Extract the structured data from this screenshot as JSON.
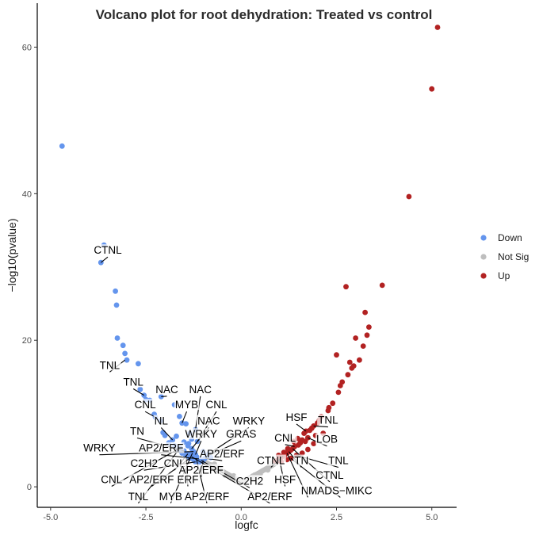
{
  "chart_data": {
    "type": "scatter",
    "title": "Volcano plot for root dehydration: Treated vs control",
    "xlabel": "logfc",
    "ylabel": "−log10(pvalue)",
    "xlim": [
      -5.35,
      5.65
    ],
    "ylim": [
      -2.8,
      66
    ],
    "x_ticks": [
      -5.0,
      -2.5,
      0.0,
      2.5,
      5.0
    ],
    "x_tick_labels": [
      "-5.0",
      "-2.5",
      "0.0",
      "2.5",
      "5.0"
    ],
    "y_ticks": [
      0,
      20,
      40,
      60
    ],
    "y_tick_labels": [
      "0",
      "20",
      "40",
      "60"
    ],
    "grid": false,
    "legend": {
      "position": "right",
      "entries": [
        {
          "name": "Down",
          "color": "#6495ED"
        },
        {
          "name": "Not Sig",
          "color": "#BEBEBE"
        },
        {
          "name": "Up",
          "color": "#B22222"
        }
      ]
    },
    "series": [
      {
        "name": "Down",
        "color": "#6495ED",
        "points": [
          [
            -4.7,
            46.5
          ],
          [
            -3.6,
            33.0
          ],
          [
            -3.68,
            30.6
          ],
          [
            -3.3,
            26.7
          ],
          [
            -3.27,
            24.8
          ],
          [
            -3.25,
            20.3
          ],
          [
            -3.1,
            19.3
          ],
          [
            -3.05,
            18.2
          ],
          [
            -3.0,
            17.3
          ],
          [
            -2.7,
            16.8
          ],
          [
            -2.65,
            13.3
          ],
          [
            -2.55,
            12.5
          ],
          [
            -2.5,
            11.9
          ],
          [
            -2.4,
            11.8
          ],
          [
            -2.28,
            9.9
          ],
          [
            -2.25,
            9.5
          ],
          [
            -2.12,
            9.0
          ],
          [
            -2.1,
            12.3
          ],
          [
            -1.75,
            11.2
          ],
          [
            -1.62,
            9.6
          ],
          [
            -1.55,
            8.7
          ],
          [
            -1.45,
            8.6
          ],
          [
            -1.35,
            7.3
          ],
          [
            -1.2,
            7.8
          ],
          [
            -1.15,
            6.2
          ],
          [
            -1.8,
            6.4
          ],
          [
            -1.7,
            6.9
          ],
          [
            -1.5,
            6.1
          ],
          [
            -1.4,
            5.6
          ],
          [
            -1.3,
            5.2
          ],
          [
            -1.25,
            4.8
          ],
          [
            -1.2,
            4.4
          ],
          [
            -1.15,
            4.0
          ],
          [
            -1.1,
            3.8
          ],
          [
            -1.05,
            3.6
          ],
          [
            -1.3,
            4.1
          ],
          [
            -1.4,
            4.5
          ],
          [
            -1.5,
            4.9
          ],
          [
            -1.6,
            5.3
          ],
          [
            -1.35,
            3.9
          ],
          [
            -1.45,
            4.2
          ],
          [
            -1.25,
            3.7
          ],
          [
            -1.0,
            3.6
          ],
          [
            -0.95,
            3.9
          ],
          [
            -0.9,
            4.2
          ],
          [
            -0.85,
            4.5
          ],
          [
            -1.2,
            3.4
          ],
          [
            -1.1,
            3.3
          ],
          [
            -1.55,
            4.6
          ],
          [
            -1.65,
            5.0
          ],
          [
            -1.75,
            5.6
          ],
          [
            -1.9,
            6.0
          ],
          [
            -2.0,
            7.0
          ],
          [
            -2.05,
            7.4
          ],
          [
            -1.3,
            6.5
          ],
          [
            -1.0,
            4.8
          ],
          [
            -0.8,
            4.0
          ],
          [
            -1.38,
            5.9
          ],
          [
            -1.28,
            4.6
          ],
          [
            -1.18,
            3.9
          ]
        ]
      },
      {
        "name": "Not Sig",
        "color": "#BEBEBE",
        "points": [
          [
            -0.95,
            3.4
          ],
          [
            -0.9,
            3.25
          ],
          [
            -0.85,
            3.1
          ],
          [
            -0.8,
            3.0
          ],
          [
            -0.75,
            2.85
          ],
          [
            -0.7,
            2.75
          ],
          [
            -0.65,
            2.6
          ],
          [
            -0.6,
            2.45
          ],
          [
            -0.55,
            2.3
          ],
          [
            -0.5,
            2.15
          ],
          [
            -0.45,
            2.0
          ],
          [
            -0.4,
            1.85
          ],
          [
            -0.35,
            1.7
          ],
          [
            -0.3,
            1.55
          ],
          [
            -0.25,
            1.4
          ],
          [
            -0.2,
            1.25
          ],
          [
            -0.15,
            1.1
          ],
          [
            -0.1,
            0.95
          ],
          [
            -0.05,
            0.85
          ],
          [
            0.0,
            0.8
          ],
          [
            0.05,
            0.85
          ],
          [
            0.1,
            0.95
          ],
          [
            0.15,
            1.05
          ],
          [
            0.2,
            1.2
          ],
          [
            0.25,
            1.3
          ],
          [
            0.3,
            1.45
          ],
          [
            0.35,
            1.6
          ],
          [
            0.4,
            1.7
          ],
          [
            0.45,
            1.85
          ],
          [
            0.5,
            2.0
          ],
          [
            0.55,
            2.15
          ],
          [
            0.6,
            2.3
          ],
          [
            0.65,
            2.45
          ],
          [
            0.7,
            2.6
          ],
          [
            0.75,
            2.75
          ],
          [
            0.8,
            2.9
          ],
          [
            0.85,
            3.05
          ],
          [
            0.9,
            3.2
          ],
          [
            -0.78,
            2.6
          ],
          [
            -0.6,
            2.7
          ],
          [
            -0.42,
            1.6
          ],
          [
            -0.2,
            1.5
          ],
          [
            0.1,
            0.7
          ],
          [
            0.3,
            1.2
          ],
          [
            0.5,
            1.7
          ],
          [
            0.7,
            2.3
          ],
          [
            0.82,
            3.3
          ],
          [
            -0.7,
            3.1
          ]
        ]
      },
      {
        "name": "Up",
        "color": "#B22222",
        "points": [
          [
            5.15,
            62.7
          ],
          [
            5.0,
            54.3
          ],
          [
            4.4,
            39.6
          ],
          [
            3.7,
            27.5
          ],
          [
            2.75,
            27.3
          ],
          [
            3.25,
            23.8
          ],
          [
            3.35,
            21.8
          ],
          [
            3.3,
            20.7
          ],
          [
            3.0,
            20.3
          ],
          [
            3.2,
            19.2
          ],
          [
            3.1,
            17.3
          ],
          [
            2.5,
            18.0
          ],
          [
            2.85,
            17.0
          ],
          [
            2.95,
            16.5
          ],
          [
            2.9,
            16.2
          ],
          [
            2.8,
            15.3
          ],
          [
            2.65,
            14.3
          ],
          [
            2.6,
            13.8
          ],
          [
            2.55,
            12.9
          ],
          [
            2.4,
            11.4
          ],
          [
            2.3,
            10.8
          ],
          [
            2.28,
            10.4
          ],
          [
            2.1,
            9.6
          ],
          [
            2.05,
            9.1
          ],
          [
            2.0,
            8.7
          ],
          [
            1.9,
            8.3
          ],
          [
            1.85,
            8.0
          ],
          [
            1.8,
            7.7
          ],
          [
            1.7,
            7.6
          ],
          [
            1.65,
            7.3
          ],
          [
            1.95,
            7.0
          ],
          [
            1.75,
            6.7
          ],
          [
            1.6,
            6.4
          ],
          [
            1.55,
            6.0
          ],
          [
            1.5,
            5.7
          ],
          [
            1.4,
            5.5
          ],
          [
            1.35,
            5.2
          ],
          [
            1.3,
            5.0
          ],
          [
            1.25,
            4.8
          ],
          [
            1.2,
            4.6
          ],
          [
            1.15,
            4.4
          ],
          [
            1.1,
            4.2
          ],
          [
            1.05,
            4.0
          ],
          [
            1.0,
            3.8
          ],
          [
            0.95,
            3.6
          ],
          [
            1.45,
            4.3
          ],
          [
            1.6,
            4.6
          ],
          [
            1.75,
            5.1
          ],
          [
            1.9,
            5.9
          ],
          [
            1.3,
            3.9
          ],
          [
            1.2,
            3.7
          ],
          [
            1.05,
            3.4
          ],
          [
            0.9,
            3.5
          ],
          [
            0.98,
            4.3
          ],
          [
            1.12,
            4.7
          ],
          [
            1.22,
            5.2
          ],
          [
            1.38,
            6.2
          ],
          [
            1.48,
            6.6
          ],
          [
            2.15,
            7.3
          ],
          [
            1.68,
            6.2
          ]
        ]
      }
    ],
    "annotations": [
      {
        "text": "CTNL",
        "lx": -3.5,
        "ly": 31.8,
        "px": -3.68,
        "py": 30.6
      },
      {
        "text": "TNL",
        "lx": -3.45,
        "ly": 16.1,
        "px": -3.05,
        "py": 17.3
      },
      {
        "text": "TNL",
        "lx": -2.83,
        "ly": 13.8,
        "px": -2.55,
        "py": 12.5
      },
      {
        "text": "NAC",
        "lx": -1.95,
        "ly": 12.8,
        "px": -2.1,
        "py": 12.3
      },
      {
        "text": "NAC",
        "lx": -1.07,
        "ly": 12.8,
        "px": -1.2,
        "py": 7.8
      },
      {
        "text": "CNL",
        "lx": -2.52,
        "ly": 10.7,
        "px": -2.25,
        "py": 9.5
      },
      {
        "text": "MYB",
        "lx": -1.43,
        "ly": 10.7,
        "px": -1.55,
        "py": 8.7
      },
      {
        "text": "CNL",
        "lx": -0.65,
        "ly": 10.7,
        "px": -1.15,
        "py": 6.2
      },
      {
        "text": "NL",
        "lx": -2.1,
        "ly": 8.5,
        "px": -1.8,
        "py": 6.4
      },
      {
        "text": "NAC",
        "lx": -0.85,
        "ly": 8.5,
        "px": -1.3,
        "py": 5.2
      },
      {
        "text": "WRKY",
        "lx": 0.2,
        "ly": 8.5,
        "px": -0.85,
        "py": 4.5
      },
      {
        "text": "TN",
        "lx": -2.73,
        "ly": 7.1,
        "px": -1.5,
        "py": 4.9
      },
      {
        "text": "WRKY",
        "lx": -1.05,
        "ly": 6.7,
        "px": -1.2,
        "py": 4.4
      },
      {
        "text": "GRAS",
        "lx": 0.0,
        "ly": 6.7,
        "px": -0.9,
        "py": 4.2
      },
      {
        "text": "WRKY",
        "lx": -3.72,
        "ly": 4.8,
        "px": -1.25,
        "py": 4.8
      },
      {
        "text": "AP2/ERF",
        "lx": -2.1,
        "ly": 4.8,
        "px": -1.1,
        "py": 3.8
      },
      {
        "text": "AP2/ERF",
        "lx": -0.5,
        "ly": 4.0,
        "px": -0.95,
        "py": 3.9
      },
      {
        "text": "C2H2",
        "lx": -2.55,
        "ly": 2.7,
        "px": -1.2,
        "py": 3.4
      },
      {
        "text": "CNL",
        "lx": -1.75,
        "ly": 2.7,
        "px": -1.4,
        "py": 4.5
      },
      {
        "text": "AP2/ERF",
        "lx": -1.05,
        "ly": 1.8,
        "px": -1.0,
        "py": 3.6
      },
      {
        "text": "CNL",
        "lx": -3.4,
        "ly": 0.5,
        "px": -1.6,
        "py": 5.3
      },
      {
        "text": "AP2/ERF",
        "lx": -2.35,
        "ly": 0.5,
        "px": -1.35,
        "py": 3.9
      },
      {
        "text": "ERF",
        "lx": -1.4,
        "ly": 0.5,
        "px": -1.45,
        "py": 4.2
      },
      {
        "text": "C2H2",
        "lx": 0.22,
        "ly": 0.3,
        "px": -1.05,
        "py": 3.6
      },
      {
        "text": "TNL",
        "lx": -2.7,
        "ly": -1.8,
        "px": -1.65,
        "py": 5.0
      },
      {
        "text": "MYB",
        "lx": -1.85,
        "ly": -1.8,
        "px": -1.28,
        "py": 4.6
      },
      {
        "text": "AP2/ERF",
        "lx": -0.9,
        "ly": -1.8,
        "px": -1.18,
        "py": 3.9
      },
      {
        "text": "AP2/ERF",
        "lx": 0.75,
        "ly": -1.8,
        "px": -1.3,
        "py": 4.1
      },
      {
        "text": "HSF",
        "lx": 1.45,
        "ly": 9.0,
        "px": 1.7,
        "py": 7.6
      },
      {
        "text": "TNL",
        "lx": 2.28,
        "ly": 8.6,
        "px": 1.9,
        "py": 8.3
      },
      {
        "text": "CNL",
        "lx": 1.15,
        "ly": 6.2,
        "px": 1.4,
        "py": 5.5
      },
      {
        "text": "LOB",
        "lx": 2.25,
        "ly": 6.0,
        "px": 1.75,
        "py": 6.7
      },
      {
        "text": "CTNL",
        "lx": 0.78,
        "ly": 3.1,
        "px": 1.1,
        "py": 4.2
      },
      {
        "text": "TN",
        "lx": 1.58,
        "ly": 3.1,
        "px": 1.25,
        "py": 4.8
      },
      {
        "text": "TNL",
        "lx": 2.55,
        "ly": 3.1,
        "px": 1.45,
        "py": 4.3
      },
      {
        "text": "CTNL",
        "lx": 2.32,
        "ly": 1.1,
        "px": 1.35,
        "py": 5.2
      },
      {
        "text": "HSF",
        "lx": 1.15,
        "ly": 0.5,
        "px": 1.0,
        "py": 3.8
      },
      {
        "text": "NL",
        "lx": 1.75,
        "ly": -1.0,
        "px": 1.2,
        "py": 4.6
      },
      {
        "text": "MADS−MIKC",
        "lx": 2.6,
        "ly": -1.0,
        "px": 1.3,
        "py": 3.9
      }
    ]
  }
}
